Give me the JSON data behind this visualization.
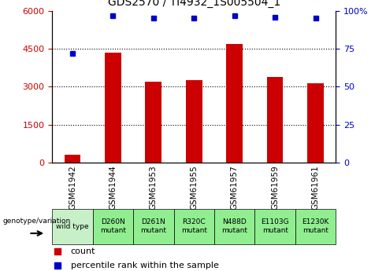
{
  "title": "GDS2570 / TI4932_1S005504_1",
  "samples": [
    "GSM61942",
    "GSM61944",
    "GSM61953",
    "GSM61955",
    "GSM61957",
    "GSM61959",
    "GSM61961"
  ],
  "genotypes": [
    "wild type",
    "D260N\nmutant",
    "D261N\nmutant",
    "R320C\nmutant",
    "N488D\nmutant",
    "E1103G\nmutant",
    "E1230K\nmutant"
  ],
  "counts": [
    300,
    4350,
    3200,
    3250,
    4700,
    3400,
    3150
  ],
  "percentile_ranks": [
    72,
    97,
    95,
    95,
    97,
    96,
    95
  ],
  "bar_color": "#cc0000",
  "dot_color": "#0000cc",
  "ylim_left": [
    0,
    6000
  ],
  "ylim_right": [
    0,
    100
  ],
  "yticks_left": [
    0,
    1500,
    3000,
    4500,
    6000
  ],
  "yticks_right": [
    0,
    25,
    50,
    75,
    100
  ],
  "ytick_labels_right": [
    "0",
    "25",
    "50",
    "75",
    "100%"
  ],
  "grid_values": [
    1500,
    3000,
    4500
  ],
  "genotype_bg_wildtype": "#c8f0c8",
  "genotype_bg_mutant": "#90ee90",
  "sample_bg": "#d3d3d3",
  "legend_count_color": "#cc0000",
  "legend_dot_color": "#0000cc",
  "legend_count_label": "count",
  "legend_dot_label": "percentile rank within the sample",
  "bar_width": 0.4,
  "dot_size": 5,
  "title_fontsize": 10,
  "tick_fontsize": 8,
  "sample_fontsize": 7.5,
  "geno_fontsize": 6.5,
  "legend_fontsize": 8
}
